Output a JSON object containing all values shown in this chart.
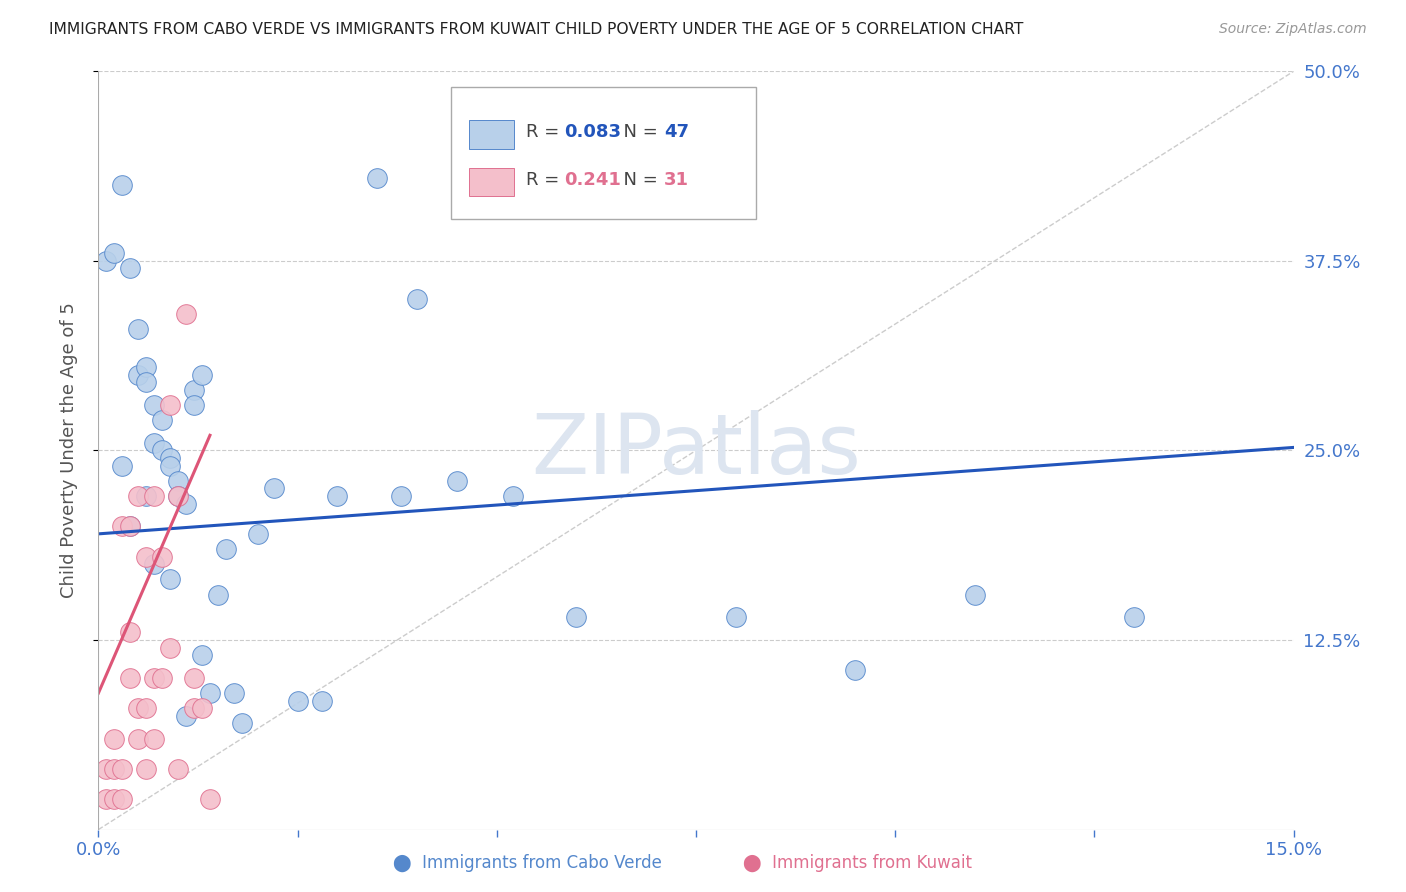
{
  "title": "IMMIGRANTS FROM CABO VERDE VS IMMIGRANTS FROM KUWAIT CHILD POVERTY UNDER THE AGE OF 5 CORRELATION CHART",
  "source": "Source: ZipAtlas.com",
  "ylabel": "Child Poverty Under the Age of 5",
  "xlim": [
    0,
    0.15
  ],
  "ylim": [
    0,
    0.5
  ],
  "ytick_labels": [
    "12.5%",
    "25.0%",
    "37.5%",
    "50.0%"
  ],
  "ytick_positions": [
    0.125,
    0.25,
    0.375,
    0.5
  ],
  "background_color": "#ffffff",
  "grid_color": "#cccccc",
  "cabo_verde_color": "#b8d0ea",
  "kuwait_color": "#f4bfcb",
  "cabo_verde_edge_color": "#5588cc",
  "kuwait_edge_color": "#e07090",
  "cabo_verde_line_color": "#2255bb",
  "kuwait_line_color": "#dd5577",
  "legend_cabo_r": "0.083",
  "legend_cabo_n": "47",
  "legend_kuwait_r": "0.241",
  "legend_kuwait_n": "31",
  "cabo_verde_scatter_x": [
    0.001,
    0.003,
    0.004,
    0.005,
    0.005,
    0.006,
    0.006,
    0.007,
    0.007,
    0.008,
    0.008,
    0.009,
    0.009,
    0.01,
    0.01,
    0.011,
    0.012,
    0.012,
    0.013,
    0.014,
    0.015,
    0.016,
    0.017,
    0.018,
    0.02,
    0.022,
    0.025,
    0.028,
    0.03,
    0.035,
    0.038,
    0.04,
    0.045,
    0.052,
    0.06,
    0.08,
    0.095,
    0.11,
    0.13,
    0.002,
    0.003,
    0.004,
    0.006,
    0.007,
    0.009,
    0.011,
    0.013
  ],
  "cabo_verde_scatter_y": [
    0.375,
    0.425,
    0.37,
    0.33,
    0.3,
    0.305,
    0.295,
    0.28,
    0.255,
    0.27,
    0.25,
    0.245,
    0.24,
    0.23,
    0.22,
    0.215,
    0.29,
    0.28,
    0.3,
    0.09,
    0.155,
    0.185,
    0.09,
    0.07,
    0.195,
    0.225,
    0.085,
    0.085,
    0.22,
    0.43,
    0.22,
    0.35,
    0.23,
    0.22,
    0.14,
    0.14,
    0.105,
    0.155,
    0.14,
    0.38,
    0.24,
    0.2,
    0.22,
    0.175,
    0.165,
    0.075,
    0.115
  ],
  "kuwait_scatter_x": [
    0.001,
    0.001,
    0.002,
    0.002,
    0.002,
    0.003,
    0.003,
    0.003,
    0.004,
    0.004,
    0.004,
    0.005,
    0.005,
    0.005,
    0.006,
    0.006,
    0.006,
    0.007,
    0.007,
    0.007,
    0.008,
    0.008,
    0.009,
    0.009,
    0.01,
    0.01,
    0.011,
    0.012,
    0.012,
    0.013,
    0.014
  ],
  "kuwait_scatter_y": [
    0.02,
    0.04,
    0.02,
    0.04,
    0.06,
    0.02,
    0.04,
    0.2,
    0.1,
    0.13,
    0.2,
    0.06,
    0.08,
    0.22,
    0.04,
    0.08,
    0.18,
    0.06,
    0.1,
    0.22,
    0.1,
    0.18,
    0.12,
    0.28,
    0.22,
    0.04,
    0.34,
    0.1,
    0.08,
    0.08,
    0.02
  ],
  "cabo_trend_x": [
    0.0,
    0.15
  ],
  "cabo_trend_y": [
    0.195,
    0.252
  ],
  "kuwait_trend_x": [
    0.0,
    0.014
  ],
  "kuwait_trend_y": [
    0.09,
    0.26
  ],
  "ref_line_x": [
    0.0,
    0.15
  ],
  "ref_line_y": [
    0.0,
    0.5
  ],
  "watermark": "ZIPatlas",
  "watermark_color": "#dde5f0",
  "title_color": "#222222",
  "axis_label_color": "#555555",
  "tick_label_color": "#4477cc",
  "right_tick_color": "#4477cc"
}
